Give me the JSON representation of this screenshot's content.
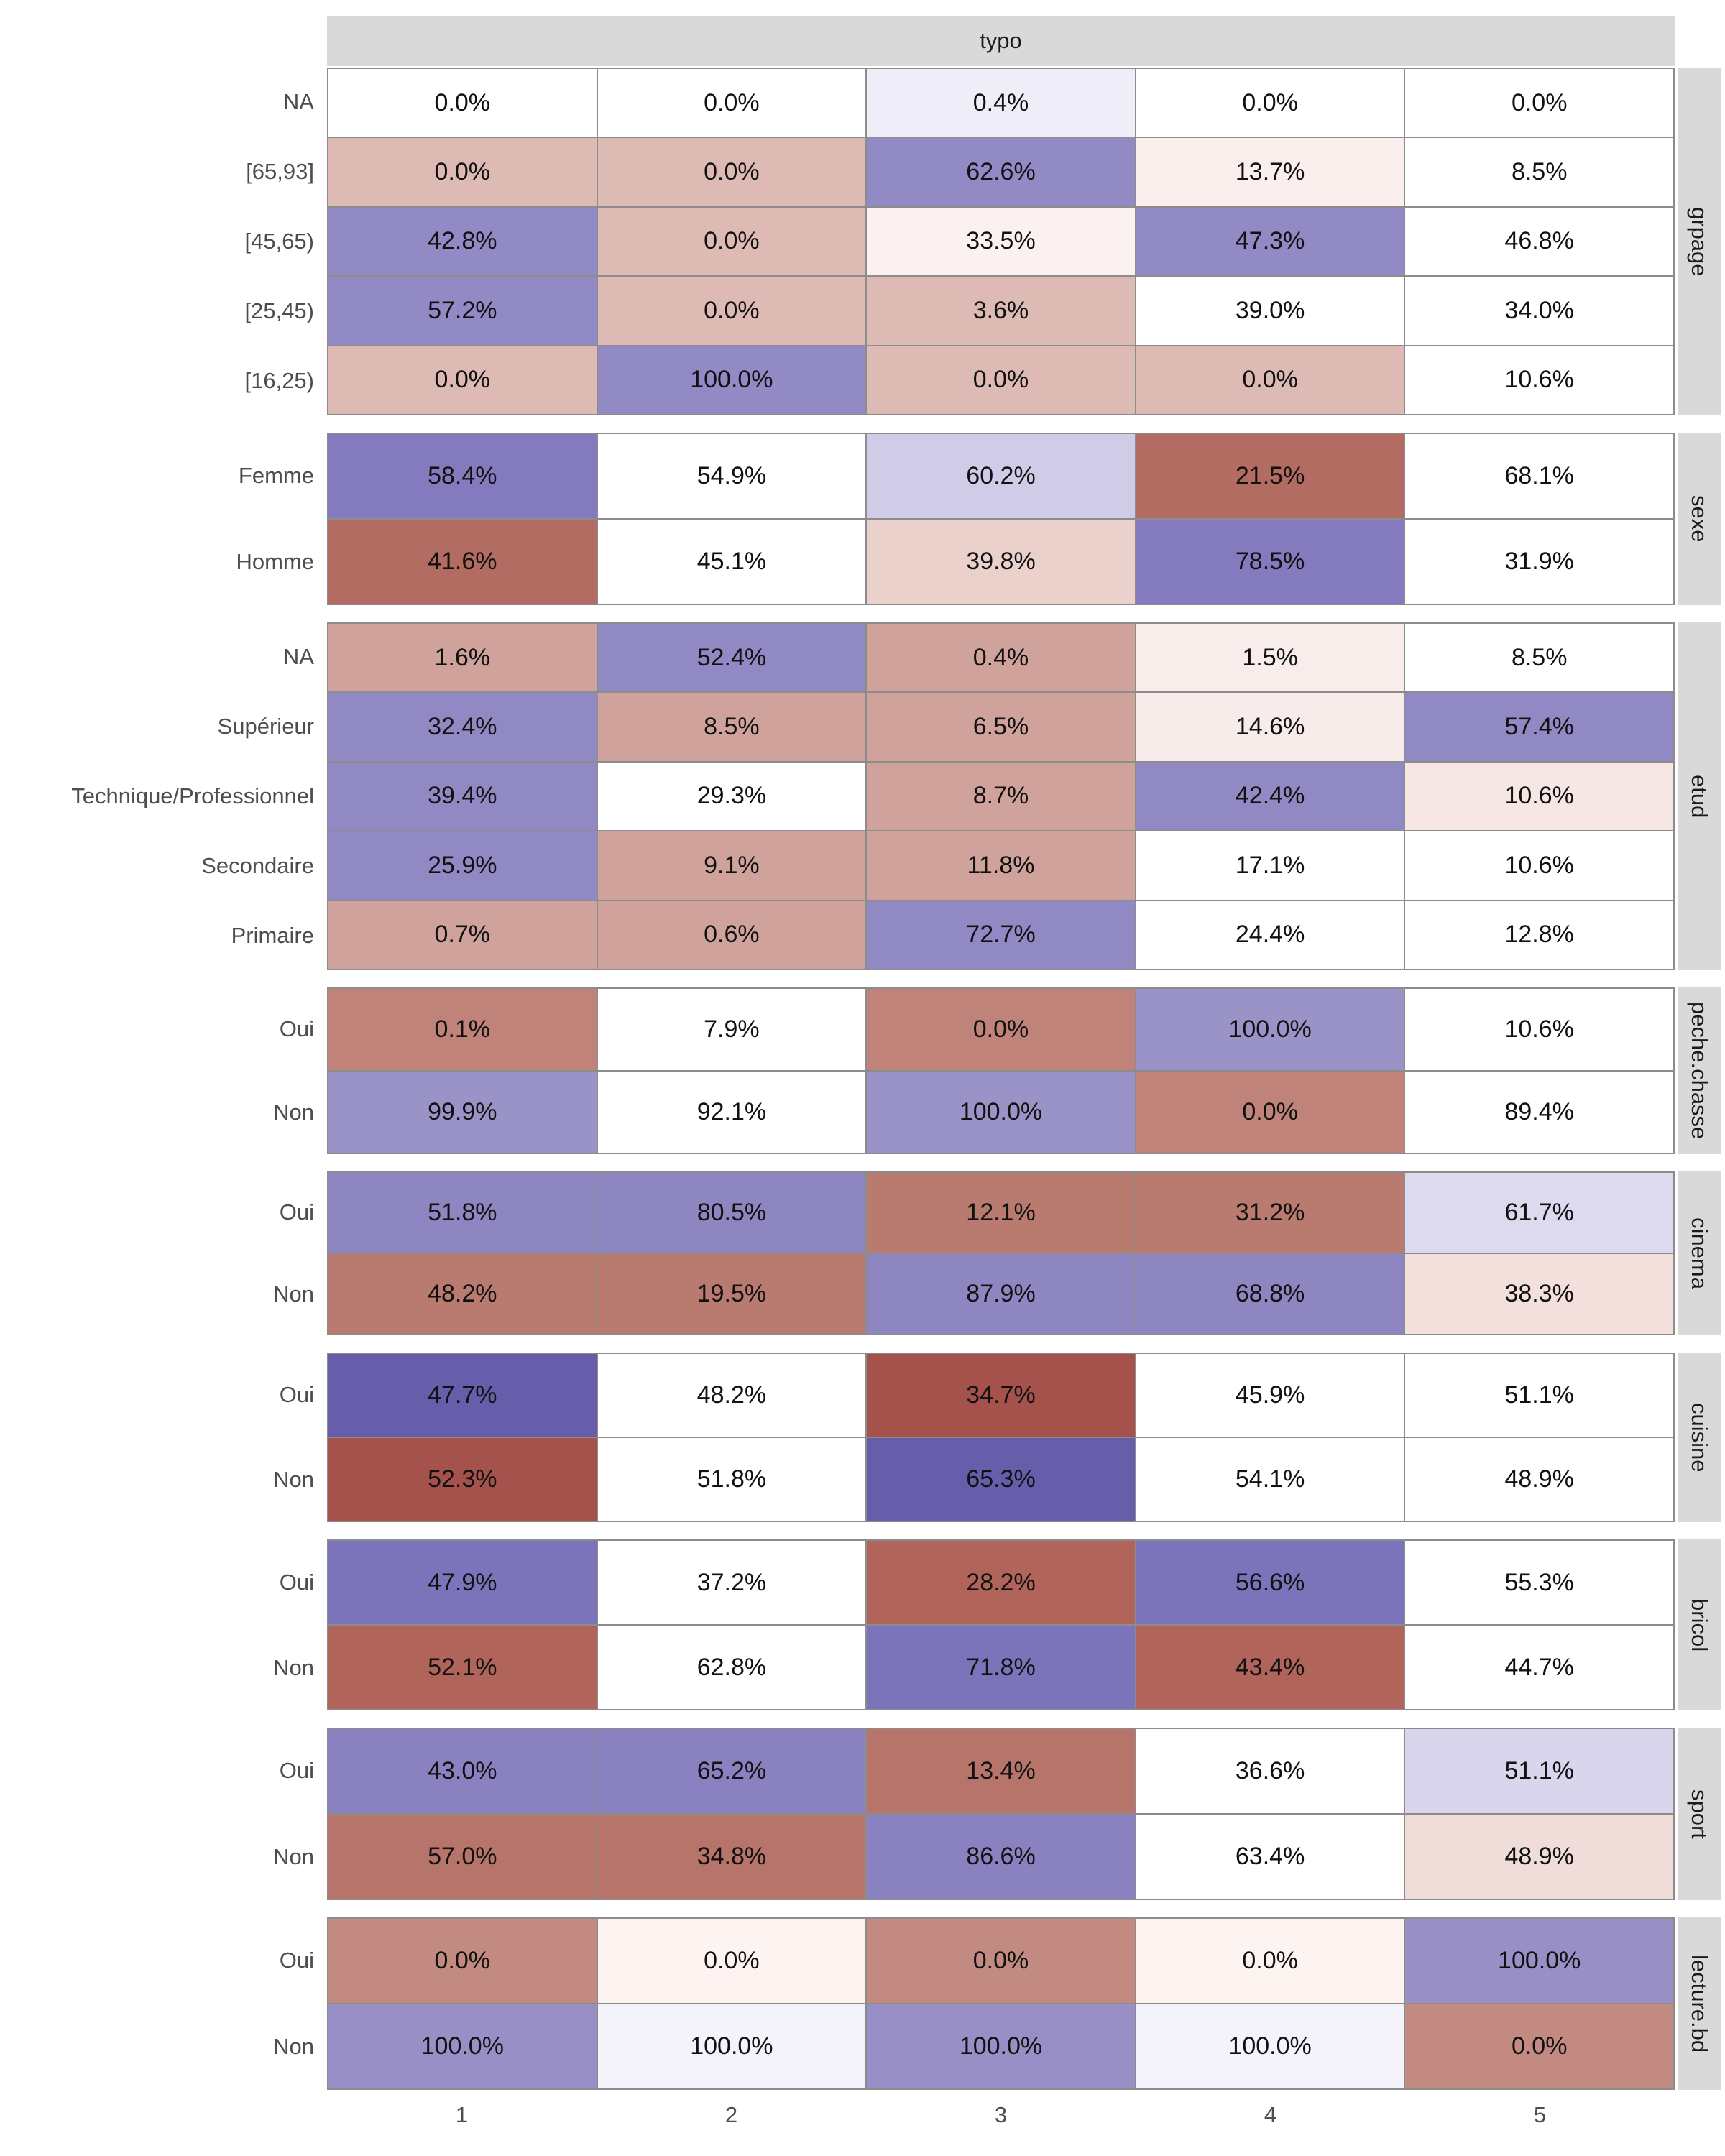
{
  "chart_data": {
    "type": "heatmap",
    "title": "typo",
    "x_axis_label": "",
    "y_axis_label": "",
    "x_categories": [
      "1",
      "2",
      "3",
      "4",
      "5"
    ],
    "value_unit": "percent",
    "legend_position": "none",
    "grid": "tile-borders",
    "palette_hint": {
      "strong_positive_association": "#675EAB",
      "positive_association": "#9189C3",
      "neutral": "#FFFFFF",
      "negative_association": "#D0A29C",
      "strong_negative_association": "#A5524C",
      "strip_background": "#D9D9D9",
      "tile_border": "#8C8C8C",
      "axis_text": "#4D4D4D"
    },
    "facets": [
      {
        "variable": "grpage",
        "rows": [
          {
            "label": "NA",
            "values": [
              0.0,
              0.0,
              0.4,
              0.0,
              0.0
            ],
            "display": [
              "0.0%",
              "0.0%",
              "0.4%",
              "0.0%",
              "0.0%"
            ],
            "colors": [
              "#FFFFFF",
              "#FFFFFF",
              "#EFEEF8",
              "#FFFFFF",
              "#FFFFFF"
            ]
          },
          {
            "label": "[65,93]",
            "values": [
              0.0,
              0.0,
              62.6,
              13.7,
              8.5
            ],
            "display": [
              "0.0%",
              "0.0%",
              "62.6%",
              "13.7%",
              "8.5%"
            ],
            "colors": [
              "#DEBAB5",
              "#DEBAB5",
              "#918AC4",
              "#FAEFED",
              "#FFFFFF"
            ]
          },
          {
            "label": "[45,65)",
            "values": [
              42.8,
              0.0,
              33.5,
              47.3,
              46.8
            ],
            "display": [
              "42.8%",
              "0.0%",
              "33.5%",
              "47.3%",
              "46.8%"
            ],
            "colors": [
              "#918AC4",
              "#DEBAB5",
              "#FBF1F1",
              "#918AC4",
              "#FFFFFF"
            ]
          },
          {
            "label": "[25,45)",
            "values": [
              57.2,
              0.0,
              3.6,
              39.0,
              34.0
            ],
            "display": [
              "57.2%",
              "0.0%",
              "3.6%",
              "39.0%",
              "34.0%"
            ],
            "colors": [
              "#918AC4",
              "#DEBAB5",
              "#DEBAB5",
              "#FFFFFF",
              "#FFFFFF"
            ]
          },
          {
            "label": "[16,25)",
            "values": [
              0.0,
              100.0,
              0.0,
              0.0,
              10.6
            ],
            "display": [
              "0.0%",
              "100.0%",
              "0.0%",
              "0.0%",
              "10.6%"
            ],
            "colors": [
              "#DEBAB5",
              "#918AC4",
              "#DEBAB5",
              "#DEBAB5",
              "#FFFFFF"
            ]
          }
        ]
      },
      {
        "variable": "sexe",
        "rows": [
          {
            "label": "Femme",
            "values": [
              58.4,
              54.9,
              60.2,
              21.5,
              68.1
            ],
            "display": [
              "58.4%",
              "54.9%",
              "60.2%",
              "21.5%",
              "68.1%"
            ],
            "colors": [
              "#837BBE",
              "#FFFFFF",
              "#D0CCE8",
              "#B26C61",
              "#FFFFFF"
            ]
          },
          {
            "label": "Homme",
            "values": [
              41.6,
              45.1,
              39.8,
              78.5,
              31.9
            ],
            "display": [
              "41.6%",
              "45.1%",
              "39.8%",
              "78.5%",
              "31.9%"
            ],
            "colors": [
              "#B26C61",
              "#FFFFFF",
              "#EAD1CC",
              "#837BBE",
              "#FFFFFF"
            ]
          }
        ]
      },
      {
        "variable": "etud",
        "rows": [
          {
            "label": "NA",
            "values": [
              1.6,
              52.4,
              0.4,
              1.5,
              8.5
            ],
            "display": [
              "1.6%",
              "52.4%",
              "0.4%",
              "1.5%",
              "8.5%"
            ],
            "colors": [
              "#D0A29C",
              "#9189C3",
              "#D0A29C",
              "#F9EDEB",
              "#FFFFFF"
            ]
          },
          {
            "label": "Supérieur",
            "values": [
              32.4,
              8.5,
              6.5,
              14.6,
              57.4
            ],
            "display": [
              "32.4%",
              "8.5%",
              "6.5%",
              "14.6%",
              "57.4%"
            ],
            "colors": [
              "#9189C3",
              "#D0A29C",
              "#D0A29C",
              "#F8ECEA",
              "#9189C3"
            ]
          },
          {
            "label": "Technique/Professionnel",
            "values": [
              39.4,
              29.3,
              8.7,
              42.4,
              10.6
            ],
            "display": [
              "39.4%",
              "29.3%",
              "8.7%",
              "42.4%",
              "10.6%"
            ],
            "colors": [
              "#9189C3",
              "#FFFFFF",
              "#D0A29C",
              "#9189C3",
              "#F6E6E4"
            ]
          },
          {
            "label": "Secondaire",
            "values": [
              25.9,
              9.1,
              11.8,
              17.1,
              10.6
            ],
            "display": [
              "25.9%",
              "9.1%",
              "11.8%",
              "17.1%",
              "10.6%"
            ],
            "colors": [
              "#9189C3",
              "#D0A29C",
              "#D0A29C",
              "#FFFFFF",
              "#FFFFFF"
            ]
          },
          {
            "label": "Primaire",
            "values": [
              0.7,
              0.6,
              72.7,
              24.4,
              12.8
            ],
            "display": [
              "0.7%",
              "0.6%",
              "72.7%",
              "24.4%",
              "12.8%"
            ],
            "colors": [
              "#D0A29C",
              "#D0A29C",
              "#9189C3",
              "#FFFFFF",
              "#FFFFFF"
            ]
          }
        ]
      },
      {
        "variable": "peche.chasse",
        "rows": [
          {
            "label": "Oui",
            "values": [
              0.1,
              7.9,
              0.0,
              100.0,
              10.6
            ],
            "display": [
              "0.1%",
              "7.9%",
              "0.0%",
              "100.0%",
              "10.6%"
            ],
            "colors": [
              "#C0837A",
              "#FFFFFF",
              "#C0837A",
              "#9A93C8",
              "#FFFFFF"
            ]
          },
          {
            "label": "Non",
            "values": [
              99.9,
              92.1,
              100.0,
              0.0,
              89.4
            ],
            "display": [
              "99.9%",
              "92.1%",
              "100.0%",
              "0.0%",
              "89.4%"
            ],
            "colors": [
              "#9A93C8",
              "#FFFFFF",
              "#9A93C8",
              "#C0837A",
              "#FFFFFF"
            ]
          }
        ]
      },
      {
        "variable": "cinema",
        "rows": [
          {
            "label": "Oui",
            "values": [
              51.8,
              80.5,
              12.1,
              31.2,
              61.7
            ],
            "display": [
              "51.8%",
              "80.5%",
              "12.1%",
              "31.2%",
              "61.7%"
            ],
            "colors": [
              "#8E86C1",
              "#8E86C1",
              "#B97B70",
              "#B97B70",
              "#DDDAEF"
            ]
          },
          {
            "label": "Non",
            "values": [
              48.2,
              19.5,
              87.9,
              68.8,
              38.3
            ],
            "display": [
              "48.2%",
              "19.5%",
              "87.9%",
              "68.8%",
              "38.3%"
            ],
            "colors": [
              "#B97B70",
              "#B97B70",
              "#8E86C1",
              "#8E86C1",
              "#F3DFDB"
            ]
          }
        ]
      },
      {
        "variable": "cuisine",
        "rows": [
          {
            "label": "Oui",
            "values": [
              47.7,
              48.2,
              34.7,
              45.9,
              51.1
            ],
            "display": [
              "47.7%",
              "48.2%",
              "34.7%",
              "45.9%",
              "51.1%"
            ],
            "colors": [
              "#675EAB",
              "#FFFFFF",
              "#A5524C",
              "#FFFFFF",
              "#FFFFFF"
            ]
          },
          {
            "label": "Non",
            "values": [
              52.3,
              51.8,
              65.3,
              54.1,
              48.9
            ],
            "display": [
              "52.3%",
              "51.8%",
              "65.3%",
              "54.1%",
              "48.9%"
            ],
            "colors": [
              "#A5524C",
              "#FFFFFF",
              "#675EAB",
              "#FFFFFF",
              "#FFFFFF"
            ]
          }
        ]
      },
      {
        "variable": "bricol",
        "rows": [
          {
            "label": "Oui",
            "values": [
              47.9,
              37.2,
              28.2,
              56.6,
              55.3
            ],
            "display": [
              "47.9%",
              "37.2%",
              "28.2%",
              "56.6%",
              "55.3%"
            ],
            "colors": [
              "#7C74BA",
              "#FFFFFF",
              "#B16459",
              "#7C74BA",
              "#FFFFFF"
            ]
          },
          {
            "label": "Non",
            "values": [
              52.1,
              62.8,
              71.8,
              43.4,
              44.7
            ],
            "display": [
              "52.1%",
              "62.8%",
              "71.8%",
              "43.4%",
              "44.7%"
            ],
            "colors": [
              "#B16459",
              "#FFFFFF",
              "#7C74BA",
              "#B16459",
              "#FFFFFF"
            ]
          }
        ]
      },
      {
        "variable": "sport",
        "rows": [
          {
            "label": "Oui",
            "values": [
              43.0,
              65.2,
              13.4,
              36.6,
              51.1
            ],
            "display": [
              "43.0%",
              "65.2%",
              "13.4%",
              "36.6%",
              "51.1%"
            ],
            "colors": [
              "#8A82C0",
              "#8A82C0",
              "#B7746A",
              "#FFFFFF",
              "#D8D5EC"
            ]
          },
          {
            "label": "Non",
            "values": [
              57.0,
              34.8,
              86.6,
              63.4,
              48.9
            ],
            "display": [
              "57.0%",
              "34.8%",
              "86.6%",
              "63.4%",
              "48.9%"
            ],
            "colors": [
              "#B7746A",
              "#B7746A",
              "#8A82C0",
              "#FFFFFF",
              "#F0DCD8"
            ]
          }
        ]
      },
      {
        "variable": "lecture.bd",
        "rows": [
          {
            "label": "Oui",
            "values": [
              0.0,
              0.0,
              0.0,
              0.0,
              100.0
            ],
            "display": [
              "0.0%",
              "0.0%",
              "0.0%",
              "0.0%",
              "100.0%"
            ],
            "colors": [
              "#C28A80",
              "#FDF4F1",
              "#C28A80",
              "#FDF4F1",
              "#978FC6"
            ]
          },
          {
            "label": "Non",
            "values": [
              100.0,
              100.0,
              100.0,
              100.0,
              0.0
            ],
            "display": [
              "100.0%",
              "100.0%",
              "100.0%",
              "100.0%",
              "0.0%"
            ],
            "colors": [
              "#978FC6",
              "#F4F2FA",
              "#978FC6",
              "#F4F2FA",
              "#C28A80"
            ]
          }
        ]
      }
    ]
  }
}
